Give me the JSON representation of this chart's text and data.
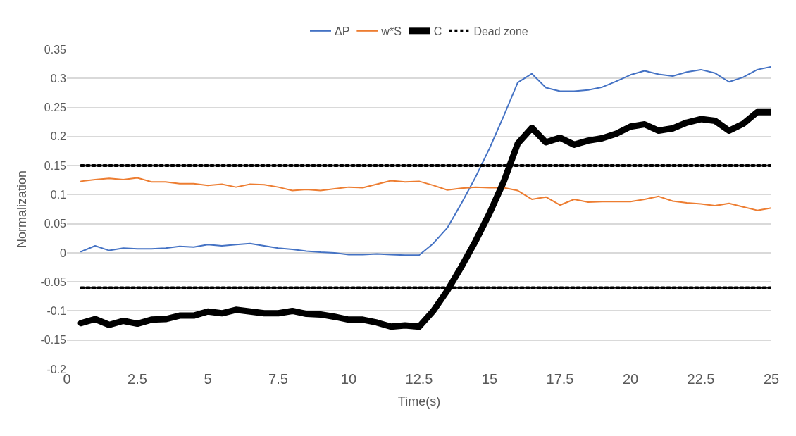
{
  "chart_data": {
    "type": "line",
    "xlabel": "Time(s)",
    "ylabel": "Normalization",
    "x": [
      0.5,
      1,
      1.5,
      2,
      2.5,
      3,
      3.5,
      4,
      4.5,
      5,
      5.5,
      6,
      6.5,
      7,
      7.5,
      8,
      8.5,
      9,
      9.5,
      10,
      10.5,
      11,
      11.5,
      12,
      12.5,
      13,
      13.5,
      14,
      14.5,
      15,
      15.5,
      16,
      16.5,
      17,
      17.5,
      18,
      18.5,
      19,
      19.5,
      20,
      20.5,
      21,
      21.5,
      22,
      22.5,
      23,
      23.5,
      24,
      24.5,
      25
    ],
    "series": [
      {
        "name": "ΔP",
        "color": "#4472c4",
        "values": [
          0.002,
          0.012,
          0.004,
          0.008,
          0.007,
          0.007,
          0.008,
          0.011,
          0.01,
          0.014,
          0.012,
          0.014,
          0.016,
          0.012,
          0.008,
          0.006,
          0.003,
          0.001,
          0.0,
          -0.003,
          -0.003,
          -0.002,
          -0.003,
          -0.004,
          -0.004,
          0.016,
          0.043,
          0.085,
          0.13,
          0.18,
          0.235,
          0.293,
          0.308,
          0.284,
          0.278,
          0.278,
          0.28,
          0.285,
          0.295,
          0.306,
          0.313,
          0.307,
          0.304,
          0.311,
          0.315,
          0.309,
          0.294,
          0.302,
          0.315,
          0.32
        ]
      },
      {
        "name": "w*S",
        "color": "#ed7d31",
        "values": [
          0.123,
          0.126,
          0.128,
          0.126,
          0.129,
          0.122,
          0.122,
          0.119,
          0.119,
          0.116,
          0.118,
          0.113,
          0.118,
          0.117,
          0.113,
          0.107,
          0.109,
          0.107,
          0.11,
          0.113,
          0.112,
          0.118,
          0.124,
          0.122,
          0.123,
          0.116,
          0.108,
          0.111,
          0.113,
          0.112,
          0.112,
          0.107,
          0.092,
          0.096,
          0.082,
          0.092,
          0.087,
          0.088,
          0.088,
          0.088,
          0.092,
          0.097,
          0.089,
          0.086,
          0.084,
          0.081,
          0.085,
          0.079,
          0.073,
          0.077
        ]
      },
      {
        "name": "C",
        "color": "#000000",
        "values": [
          -0.121,
          -0.114,
          -0.124,
          -0.117,
          -0.122,
          -0.115,
          -0.114,
          -0.108,
          -0.108,
          -0.101,
          -0.104,
          -0.098,
          -0.101,
          -0.104,
          -0.104,
          -0.1,
          -0.105,
          -0.106,
          -0.11,
          -0.115,
          -0.115,
          -0.12,
          -0.127,
          -0.125,
          -0.127,
          -0.1,
          -0.065,
          -0.024,
          0.02,
          0.068,
          0.122,
          0.188,
          0.215,
          0.19,
          0.198,
          0.186,
          0.193,
          0.197,
          0.205,
          0.217,
          0.221,
          0.21,
          0.214,
          0.224,
          0.23,
          0.227,
          0.21,
          0.222,
          0.242,
          0.242
        ]
      },
      {
        "name": "Dead zone",
        "color": "#000000",
        "line_style": "dotted",
        "values": [
          0.15,
          0.15,
          0.15,
          0.15,
          0.15,
          0.15,
          0.15,
          0.15,
          0.15,
          0.15,
          0.15,
          0.15,
          0.15,
          0.15,
          0.15,
          0.15,
          0.15,
          0.15,
          0.15,
          0.15,
          0.15,
          0.15,
          0.15,
          0.15,
          0.15,
          0.15,
          0.15,
          0.15,
          0.15,
          0.15,
          0.15,
          0.15,
          0.15,
          0.15,
          0.15,
          0.15,
          0.15,
          0.15,
          0.15,
          0.15,
          0.15,
          0.15,
          0.15,
          0.15,
          0.15,
          0.15,
          0.15,
          0.15,
          0.15,
          0.15
        ]
      },
      {
        "color": "#000000",
        "line_style": "dotted",
        "values": [
          -0.06,
          -0.06,
          -0.06,
          -0.06,
          -0.06,
          -0.06,
          -0.06,
          -0.06,
          -0.06,
          -0.06,
          -0.06,
          -0.06,
          -0.06,
          -0.06,
          -0.06,
          -0.06,
          -0.06,
          -0.06,
          -0.06,
          -0.06,
          -0.06,
          -0.06,
          -0.06,
          -0.06,
          -0.06,
          -0.06,
          -0.06,
          -0.06,
          -0.06,
          -0.06,
          -0.06,
          -0.06,
          -0.06,
          -0.06,
          -0.06,
          -0.06,
          -0.06,
          -0.06,
          -0.06,
          -0.06,
          -0.06,
          -0.06,
          -0.06,
          -0.06,
          -0.06,
          -0.06,
          -0.06,
          -0.06,
          -0.06,
          -0.06
        ]
      }
    ],
    "xlim": [
      0,
      25
    ],
    "xticks": [
      0,
      2.5,
      5,
      7.5,
      10,
      12.5,
      15,
      17.5,
      20,
      22.5,
      25
    ],
    "ylim": [
      -0.2,
      0.35
    ],
    "yticks": [
      -0.2,
      -0.15,
      -0.1,
      -0.05,
      0,
      0.05,
      0.1,
      0.15,
      0.2,
      0.25,
      0.3,
      0.35
    ],
    "grid": "y",
    "legend": "top",
    "line_style": "solid",
    "marker": "none"
  }
}
